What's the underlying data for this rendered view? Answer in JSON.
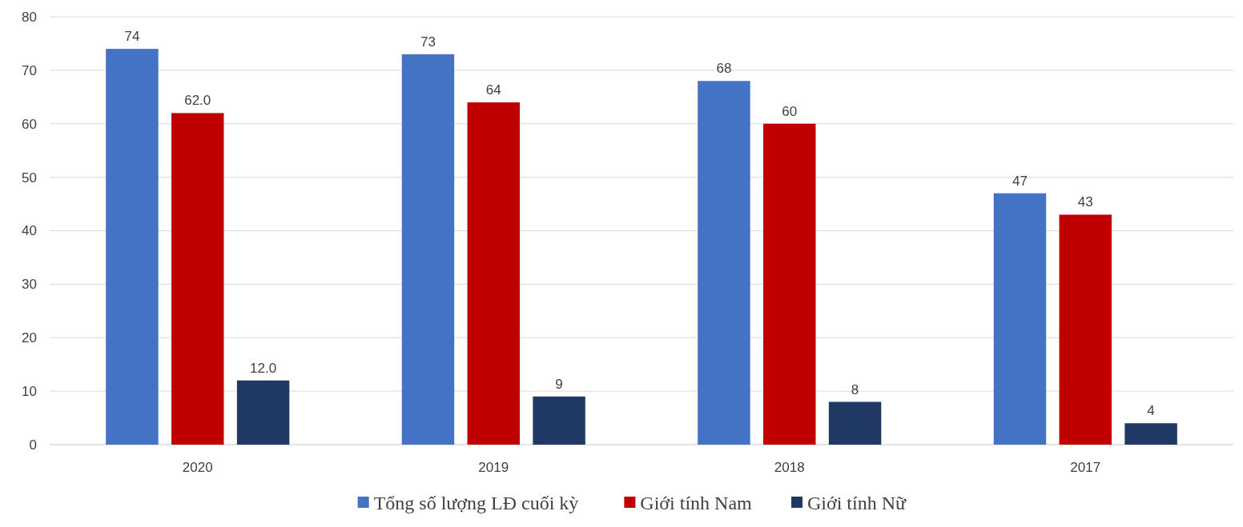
{
  "chart_data": {
    "type": "bar",
    "categories": [
      "2020",
      "2019",
      "2018",
      "2017"
    ],
    "series": [
      {
        "name": "Tổng số lượng LĐ cuối kỳ",
        "color": "#4472c4",
        "values": [
          74,
          73,
          68,
          47
        ],
        "value_labels": [
          "74",
          "73",
          "68",
          "47"
        ]
      },
      {
        "name": "Giới tính Nam",
        "color": "#c00000",
        "values": [
          62,
          64,
          60,
          43
        ],
        "value_labels": [
          "62.0",
          "64",
          "60",
          "43"
        ]
      },
      {
        "name": "Giới tính Nữ",
        "color": "#203864",
        "values": [
          12,
          9,
          8,
          4
        ],
        "value_labels": [
          "12.0",
          "9",
          "8",
          "4"
        ]
      }
    ],
    "ylim": [
      0,
      80
    ],
    "yticks": [
      0,
      10,
      20,
      30,
      40,
      50,
      60,
      70,
      80
    ],
    "grid": "y",
    "legend": "bottom"
  }
}
